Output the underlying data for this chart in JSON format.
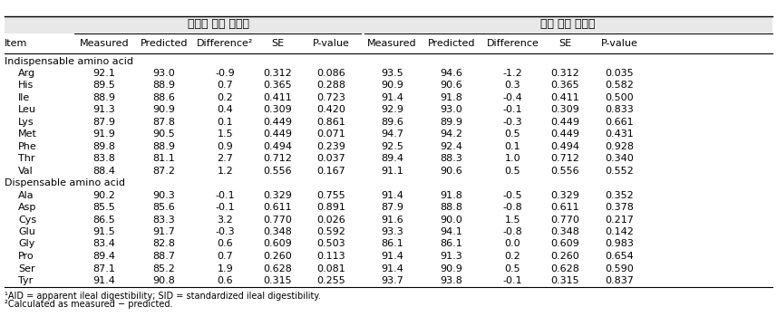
{
  "title_left": "외관상 회장 소화율",
  "title_right": "표준 회장 소화율",
  "col_headers": [
    "Item",
    "Measured",
    "Predicted",
    "Difference²",
    "SE",
    "P-value",
    "Measured",
    "Predicted",
    "Difference",
    "SE",
    "P-value"
  ],
  "section1": "Indispensable amino acid",
  "section2": "Dispensable amino acid",
  "rows": [
    [
      "Arg",
      "92.1",
      "93.0",
      "-0.9",
      "0.312",
      "0.086",
      "93.5",
      "94.6",
      "-1.2",
      "0.312",
      "0.035"
    ],
    [
      "His",
      "89.5",
      "88.9",
      "0.7",
      "0.365",
      "0.288",
      "90.9",
      "90.6",
      "0.3",
      "0.365",
      "0.582"
    ],
    [
      "Ile",
      "88.9",
      "88.6",
      "0.2",
      "0.411",
      "0.723",
      "91.4",
      "91.8",
      "-0.4",
      "0.411",
      "0.500"
    ],
    [
      "Leu",
      "91.3",
      "90.9",
      "0.4",
      "0.309",
      "0.420",
      "92.9",
      "93.0",
      "-0.1",
      "0.309",
      "0.833"
    ],
    [
      "Lys",
      "87.9",
      "87.8",
      "0.1",
      "0.449",
      "0.861",
      "89.6",
      "89.9",
      "-0.3",
      "0.449",
      "0.661"
    ],
    [
      "Met",
      "91.9",
      "90.5",
      "1.5",
      "0.449",
      "0.071",
      "94.7",
      "94.2",
      "0.5",
      "0.449",
      "0.431"
    ],
    [
      "Phe",
      "89.8",
      "88.9",
      "0.9",
      "0.494",
      "0.239",
      "92.5",
      "92.4",
      "0.1",
      "0.494",
      "0.928"
    ],
    [
      "Thr",
      "83.8",
      "81.1",
      "2.7",
      "0.712",
      "0.037",
      "89.4",
      "88.3",
      "1.0",
      "0.712",
      "0.340"
    ],
    [
      "Val",
      "88.4",
      "87.2",
      "1.2",
      "0.556",
      "0.167",
      "91.1",
      "90.6",
      "0.5",
      "0.556",
      "0.552"
    ],
    [
      "Ala",
      "90.2",
      "90.3",
      "-0.1",
      "0.329",
      "0.755",
      "91.4",
      "91.8",
      "-0.5",
      "0.329",
      "0.352"
    ],
    [
      "Asp",
      "85.5",
      "85.6",
      "-0.1",
      "0.611",
      "0.891",
      "87.9",
      "88.8",
      "-0.8",
      "0.611",
      "0.378"
    ],
    [
      "Cys",
      "86.5",
      "83.3",
      "3.2",
      "0.770",
      "0.026",
      "91.6",
      "90.0",
      "1.5",
      "0.770",
      "0.217"
    ],
    [
      "Glu",
      "91.5",
      "91.7",
      "-0.3",
      "0.348",
      "0.592",
      "93.3",
      "94.1",
      "-0.8",
      "0.348",
      "0.142"
    ],
    [
      "Gly",
      "83.4",
      "82.8",
      "0.6",
      "0.609",
      "0.503",
      "86.1",
      "86.1",
      "0.0",
      "0.609",
      "0.983"
    ],
    [
      "Pro",
      "89.4",
      "88.7",
      "0.7",
      "0.260",
      "0.113",
      "91.4",
      "91.3",
      "0.2",
      "0.260",
      "0.654"
    ],
    [
      "Ser",
      "87.1",
      "85.2",
      "1.9",
      "0.628",
      "0.081",
      "91.4",
      "90.9",
      "0.5",
      "0.628",
      "0.590"
    ],
    [
      "Tyr",
      "91.4",
      "90.8",
      "0.6",
      "0.315",
      "0.255",
      "93.7",
      "93.8",
      "-0.1",
      "0.315",
      "0.837"
    ]
  ],
  "footnote1": "¹AID = apparent ileal digestibility; SID = standardized ileal digestibility.",
  "footnote2": "²Calculated as measured − predicted.",
  "bg_color": "#ffffff",
  "text_color": "#000000",
  "header_bg": "#e8e8e8"
}
